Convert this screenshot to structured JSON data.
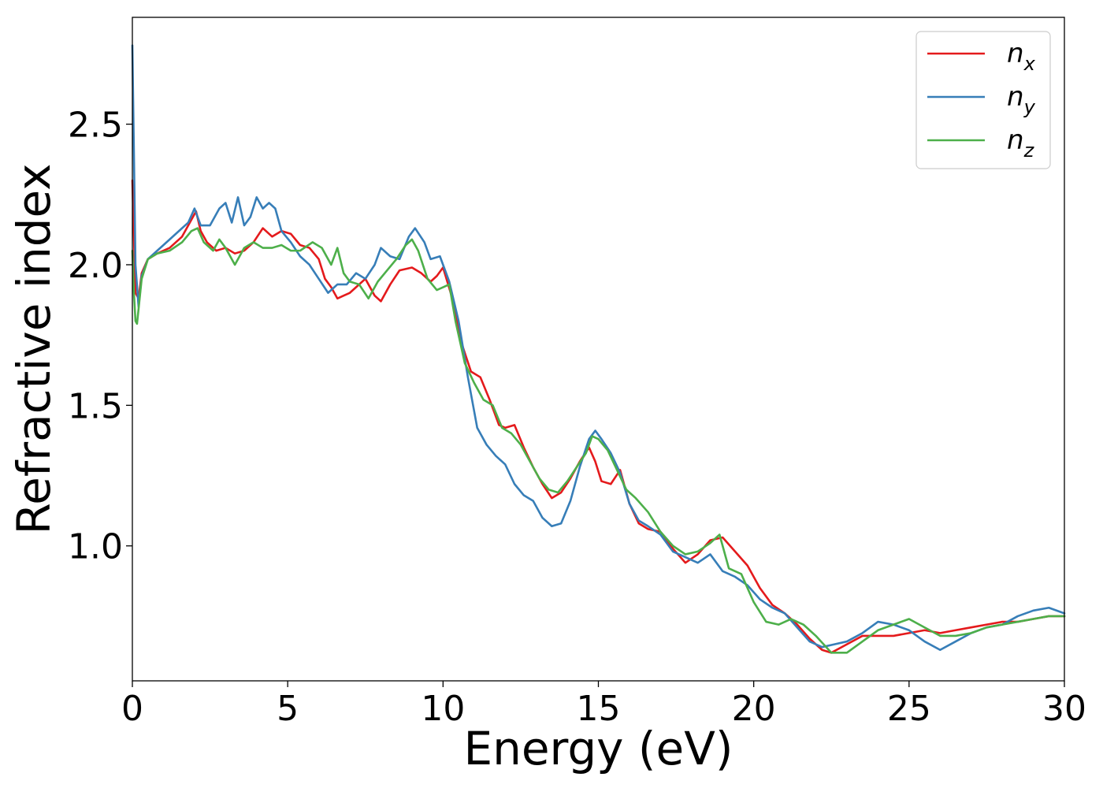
{
  "chart_data": {
    "type": "line",
    "title": "",
    "xlabel": "Energy (eV)",
    "ylabel": "Refractive index",
    "xlim": [
      0,
      30
    ],
    "ylim": [
      0.52,
      2.88
    ],
    "xticks": [
      0,
      5,
      10,
      15,
      20,
      25,
      30
    ],
    "xtick_labels": [
      "0",
      "5",
      "10",
      "15",
      "20",
      "25",
      "30"
    ],
    "yticks": [
      1.0,
      1.5,
      2.0,
      2.5
    ],
    "ytick_labels": [
      "1.0",
      "1.5",
      "2.0",
      "2.5"
    ],
    "grid": false,
    "legend_position": "top-right",
    "series": [
      {
        "name": "n_x",
        "label_base": "n",
        "label_sub": "x",
        "color": "#e41a1c",
        "x": [
          0,
          0.05,
          0.1,
          0.2,
          0.3,
          0.5,
          0.8,
          1.2,
          1.6,
          1.9,
          2.05,
          2.2,
          2.4,
          2.7,
          3.0,
          3.3,
          3.6,
          3.9,
          4.2,
          4.5,
          4.8,
          5.1,
          5.4,
          5.7,
          6.0,
          6.2,
          6.4,
          6.6,
          6.8,
          7.0,
          7.2,
          7.5,
          7.8,
          8.0,
          8.3,
          8.6,
          9.0,
          9.3,
          9.6,
          9.8,
          10.0,
          10.3,
          10.6,
          10.9,
          11.2,
          11.5,
          11.8,
          12.0,
          12.3,
          12.6,
          12.9,
          13.2,
          13.5,
          13.8,
          14.1,
          14.4,
          14.7,
          14.9,
          15.1,
          15.4,
          15.7,
          16.0,
          16.3,
          16.6,
          17.0,
          17.4,
          17.8,
          18.2,
          18.6,
          19.0,
          19.4,
          19.8,
          20.2,
          20.6,
          21.0,
          21.4,
          21.8,
          22.2,
          22.5,
          23.0,
          23.5,
          24.0,
          24.5,
          25.0,
          25.5,
          26.0,
          26.5,
          27.0,
          27.5,
          28.0,
          28.5,
          29.0,
          29.5,
          30.0
        ],
        "y": [
          2.3,
          2.1,
          1.9,
          1.88,
          1.97,
          2.02,
          2.04,
          2.06,
          2.1,
          2.16,
          2.19,
          2.12,
          2.08,
          2.05,
          2.06,
          2.04,
          2.05,
          2.08,
          2.13,
          2.1,
          2.12,
          2.11,
          2.07,
          2.06,
          2.02,
          1.95,
          1.92,
          1.88,
          1.89,
          1.9,
          1.92,
          1.95,
          1.89,
          1.87,
          1.93,
          1.98,
          1.99,
          1.97,
          1.94,
          1.96,
          1.99,
          1.88,
          1.72,
          1.62,
          1.6,
          1.52,
          1.43,
          1.42,
          1.43,
          1.35,
          1.28,
          1.22,
          1.17,
          1.19,
          1.24,
          1.3,
          1.35,
          1.3,
          1.23,
          1.22,
          1.27,
          1.15,
          1.08,
          1.06,
          1.05,
          0.99,
          0.94,
          0.97,
          1.02,
          1.03,
          0.98,
          0.93,
          0.85,
          0.79,
          0.76,
          0.72,
          0.67,
          0.63,
          0.62,
          0.65,
          0.68,
          0.68,
          0.68,
          0.69,
          0.7,
          0.69,
          0.7,
          0.71,
          0.72,
          0.73,
          0.73,
          0.74,
          0.75,
          0.75
        ]
      },
      {
        "name": "n_y",
        "label_base": "n",
        "label_sub": "y",
        "color": "#377eb8",
        "x": [
          0,
          0.05,
          0.1,
          0.2,
          0.3,
          0.5,
          0.8,
          1.2,
          1.5,
          1.8,
          2.0,
          2.2,
          2.5,
          2.8,
          3.0,
          3.2,
          3.4,
          3.6,
          3.8,
          4.0,
          4.2,
          4.4,
          4.6,
          4.8,
          5.1,
          5.4,
          5.7,
          6.0,
          6.3,
          6.6,
          6.9,
          7.2,
          7.5,
          7.8,
          8.0,
          8.3,
          8.6,
          8.9,
          9.1,
          9.4,
          9.6,
          9.9,
          10.2,
          10.5,
          10.8,
          11.1,
          11.4,
          11.7,
          12.0,
          12.3,
          12.6,
          12.9,
          13.2,
          13.5,
          13.8,
          14.1,
          14.4,
          14.7,
          14.9,
          15.1,
          15.4,
          15.7,
          16.0,
          16.3,
          16.6,
          17.0,
          17.4,
          17.8,
          18.2,
          18.6,
          19.0,
          19.4,
          19.8,
          20.2,
          20.6,
          21.0,
          21.4,
          21.8,
          22.2,
          22.6,
          23.0,
          23.5,
          24.0,
          24.5,
          25.0,
          25.5,
          26.0,
          26.5,
          27.0,
          27.5,
          28.0,
          28.5,
          29.0,
          29.5,
          30.0
        ],
        "y": [
          2.78,
          2.4,
          2.0,
          1.85,
          1.96,
          2.02,
          2.05,
          2.09,
          2.12,
          2.15,
          2.2,
          2.14,
          2.14,
          2.2,
          2.22,
          2.15,
          2.24,
          2.14,
          2.17,
          2.24,
          2.2,
          2.22,
          2.2,
          2.12,
          2.08,
          2.03,
          2.0,
          1.95,
          1.9,
          1.93,
          1.93,
          1.97,
          1.95,
          2.0,
          2.06,
          2.03,
          2.02,
          2.1,
          2.13,
          2.08,
          2.02,
          2.03,
          1.94,
          1.8,
          1.6,
          1.42,
          1.36,
          1.32,
          1.29,
          1.22,
          1.18,
          1.16,
          1.1,
          1.07,
          1.08,
          1.16,
          1.28,
          1.38,
          1.41,
          1.38,
          1.33,
          1.26,
          1.15,
          1.09,
          1.07,
          1.04,
          0.98,
          0.96,
          0.94,
          0.97,
          0.91,
          0.89,
          0.86,
          0.81,
          0.78,
          0.76,
          0.71,
          0.66,
          0.64,
          0.65,
          0.66,
          0.69,
          0.73,
          0.72,
          0.7,
          0.66,
          0.63,
          0.66,
          0.69,
          0.71,
          0.72,
          0.75,
          0.77,
          0.78,
          0.76
        ]
      },
      {
        "name": "n_z",
        "label_base": "n",
        "label_sub": "z",
        "color": "#4daf4a",
        "x": [
          0,
          0.05,
          0.1,
          0.15,
          0.3,
          0.5,
          0.8,
          1.2,
          1.6,
          1.9,
          2.1,
          2.3,
          2.6,
          2.8,
          3.0,
          3.3,
          3.6,
          3.9,
          4.2,
          4.5,
          4.8,
          5.1,
          5.4,
          5.8,
          6.1,
          6.4,
          6.6,
          6.8,
          7.0,
          7.3,
          7.6,
          7.9,
          8.2,
          8.5,
          8.8,
          9.0,
          9.2,
          9.5,
          9.8,
          10.0,
          10.2,
          10.4,
          10.7,
          11.0,
          11.3,
          11.6,
          11.9,
          12.2,
          12.5,
          12.8,
          13.1,
          13.4,
          13.7,
          14.0,
          14.3,
          14.6,
          14.8,
          15.0,
          15.3,
          15.6,
          15.9,
          16.2,
          16.6,
          17.0,
          17.4,
          17.8,
          18.2,
          18.6,
          18.9,
          19.2,
          19.6,
          20.0,
          20.4,
          20.8,
          21.2,
          21.6,
          22.0,
          22.5,
          23.0,
          23.5,
          24.0,
          24.5,
          25.0,
          25.5,
          26.0,
          26.5,
          27.0,
          27.5,
          28.0,
          28.5,
          29.0,
          29.5,
          30.0
        ],
        "y": [
          2.05,
          1.9,
          1.8,
          1.79,
          1.95,
          2.02,
          2.04,
          2.05,
          2.08,
          2.12,
          2.13,
          2.08,
          2.05,
          2.09,
          2.06,
          2.0,
          2.06,
          2.08,
          2.06,
          2.06,
          2.07,
          2.05,
          2.05,
          2.08,
          2.06,
          2.0,
          2.06,
          1.97,
          1.94,
          1.93,
          1.88,
          1.94,
          1.98,
          2.02,
          2.07,
          2.09,
          2.05,
          1.95,
          1.91,
          1.92,
          1.93,
          1.8,
          1.65,
          1.58,
          1.52,
          1.5,
          1.42,
          1.4,
          1.36,
          1.3,
          1.24,
          1.2,
          1.19,
          1.23,
          1.28,
          1.33,
          1.39,
          1.38,
          1.34,
          1.27,
          1.2,
          1.17,
          1.12,
          1.05,
          1.0,
          0.97,
          0.98,
          1.01,
          1.04,
          0.92,
          0.9,
          0.8,
          0.73,
          0.72,
          0.74,
          0.72,
          0.68,
          0.62,
          0.62,
          0.66,
          0.7,
          0.72,
          0.74,
          0.71,
          0.68,
          0.68,
          0.69,
          0.71,
          0.72,
          0.73,
          0.74,
          0.75,
          0.75
        ]
      }
    ]
  }
}
